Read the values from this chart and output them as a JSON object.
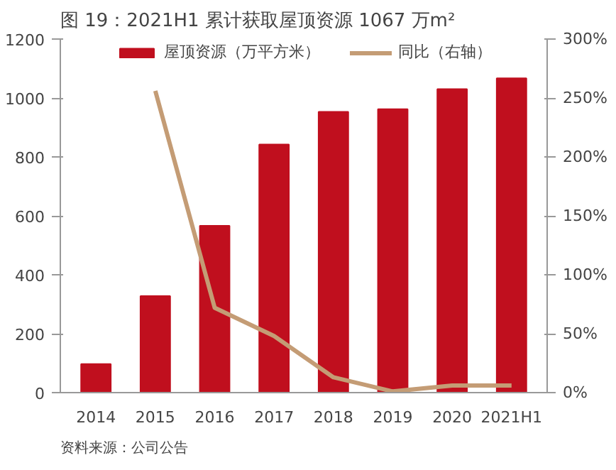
{
  "chart_data": {
    "type": "bar",
    "title": "图 19：2021H1 累计获取屋顶资源 1067 万m²",
    "categories": [
      "2014",
      "2015",
      "2016",
      "2017",
      "2018",
      "2019",
      "2020",
      "2021H1"
    ],
    "series": [
      {
        "name": "屋顶资源（万平方米）",
        "color": "#c00f1e",
        "values": [
          97,
          328,
          566,
          842,
          953,
          962,
          1030,
          1067
        ]
      },
      {
        "name": "同比（右轴）",
        "type": "line",
        "axis": "y2",
        "color": "#c49c75",
        "values": [
          null,
          256,
          72,
          48,
          13,
          1,
          6,
          6
        ]
      }
    ],
    "ylim": [
      0,
      1200
    ],
    "yticks": [
      0,
      200,
      400,
      600,
      800,
      1000,
      1200
    ],
    "y2lim": [
      0,
      300
    ],
    "y2ticks": [
      {
        "value": 0,
        "label": "0%"
      },
      {
        "value": 50,
        "label": "50%"
      },
      {
        "value": 100,
        "label": "100%"
      },
      {
        "value": 150,
        "label": "150%"
      },
      {
        "value": 200,
        "label": "200%"
      },
      {
        "value": 250,
        "label": "250%"
      },
      {
        "value": 300,
        "label": "300%"
      }
    ],
    "legend": "top",
    "grid": false,
    "annotations": [
      "资料来源：公司公告"
    ]
  }
}
